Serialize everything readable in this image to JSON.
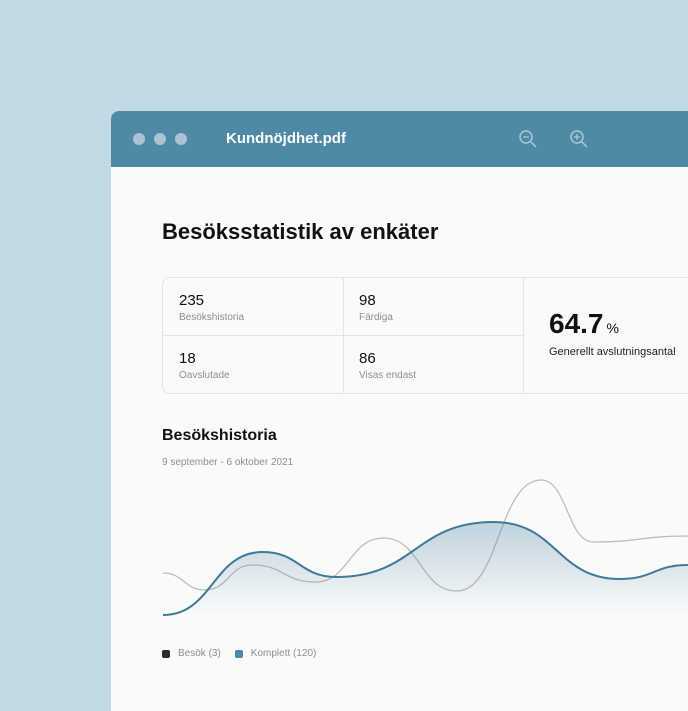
{
  "window": {
    "title": "Kundnöjdhet.pdf",
    "icons": [
      "zoom-out-icon",
      "zoom-in-icon"
    ],
    "header_color": "#5089a6"
  },
  "page": {
    "title": "Besöksstatistik av enkäter"
  },
  "stats": [
    {
      "value": "235",
      "label": "Besökshistoria"
    },
    {
      "value": "98",
      "label": "Färdiga"
    },
    {
      "value": "18",
      "label": "Oavslutade"
    },
    {
      "value": "86",
      "label": "Visas endast"
    }
  ],
  "summary": {
    "value": "64.7",
    "unit": "%",
    "label": "Generellt avslutningsantal"
  },
  "chart_section": {
    "title": "Besökshistoria",
    "date_range": "9 september - 6 oktober 2021"
  },
  "chart_data": {
    "type": "line",
    "title": "",
    "xlabel": "",
    "ylabel": "",
    "grid": false,
    "series": [
      {
        "name": "Besök (3)",
        "color": "#bdbdbd",
        "x": [
          0,
          8,
          17,
          29,
          42,
          56,
          72,
          82,
          100
        ],
        "values": [
          47,
          30,
          55,
          38,
          82,
          29,
          140,
          78,
          84
        ]
      },
      {
        "name": "Komplett (120)",
        "color": "#3f7a99",
        "area": true,
        "x": [
          0,
          19,
          33,
          63,
          87,
          100
        ],
        "values": [
          5,
          68,
          43,
          98,
          41,
          55
        ]
      }
    ],
    "legend": [
      {
        "label": "Besök (3)",
        "color": "#2b2b2b"
      },
      {
        "label": "Komplett (120)",
        "color": "#4a8aa8"
      }
    ],
    "legend_position": "bottom-left"
  }
}
